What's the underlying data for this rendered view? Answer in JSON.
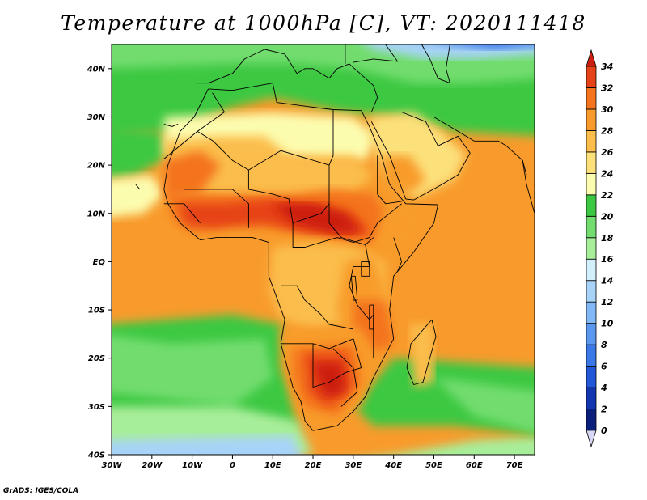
{
  "title": "Temperature at 1000hPa [C], VT: 2020111418",
  "credit": "GrADS: IGES/COLA",
  "map": {
    "lon_range": [
      -30,
      75
    ],
    "lat_range": [
      -40,
      45
    ],
    "lon_ticks": [
      {
        "value": -30,
        "label": "30W"
      },
      {
        "value": -20,
        "label": "20W"
      },
      {
        "value": -10,
        "label": "10W"
      },
      {
        "value": 0,
        "label": "0"
      },
      {
        "value": 10,
        "label": "10E"
      },
      {
        "value": 20,
        "label": "20E"
      },
      {
        "value": 30,
        "label": "30E"
      },
      {
        "value": 40,
        "label": "40E"
      },
      {
        "value": 50,
        "label": "50E"
      },
      {
        "value": 60,
        "label": "60E"
      },
      {
        "value": 70,
        "label": "70E"
      }
    ],
    "lat_ticks": [
      {
        "value": 40,
        "label": "40N"
      },
      {
        "value": 30,
        "label": "30N"
      },
      {
        "value": 20,
        "label": "20N"
      },
      {
        "value": 10,
        "label": "10N"
      },
      {
        "value": 0,
        "label": "EQ"
      },
      {
        "value": -10,
        "label": "10S"
      },
      {
        "value": -20,
        "label": "20S"
      },
      {
        "value": -30,
        "label": "30S"
      },
      {
        "value": -40,
        "label": "40S"
      }
    ]
  },
  "colorbar": {
    "levels": [
      0,
      2,
      4,
      6,
      8,
      10,
      12,
      14,
      16,
      18,
      20,
      22,
      24,
      26,
      28,
      30,
      32,
      34
    ],
    "colors": [
      "#d8d8f6",
      "#0a1f7a",
      "#1336b0",
      "#2257d8",
      "#3a78e8",
      "#5a98f0",
      "#82b8f5",
      "#a8d3f8",
      "#d2f0fc",
      "#a7ee9a",
      "#72dd6e",
      "#3cc843",
      "#fcfcae",
      "#fce07a",
      "#fbbd4c",
      "#f89b2c",
      "#f4731e",
      "#e64219",
      "#cc1f10"
    ]
  }
}
